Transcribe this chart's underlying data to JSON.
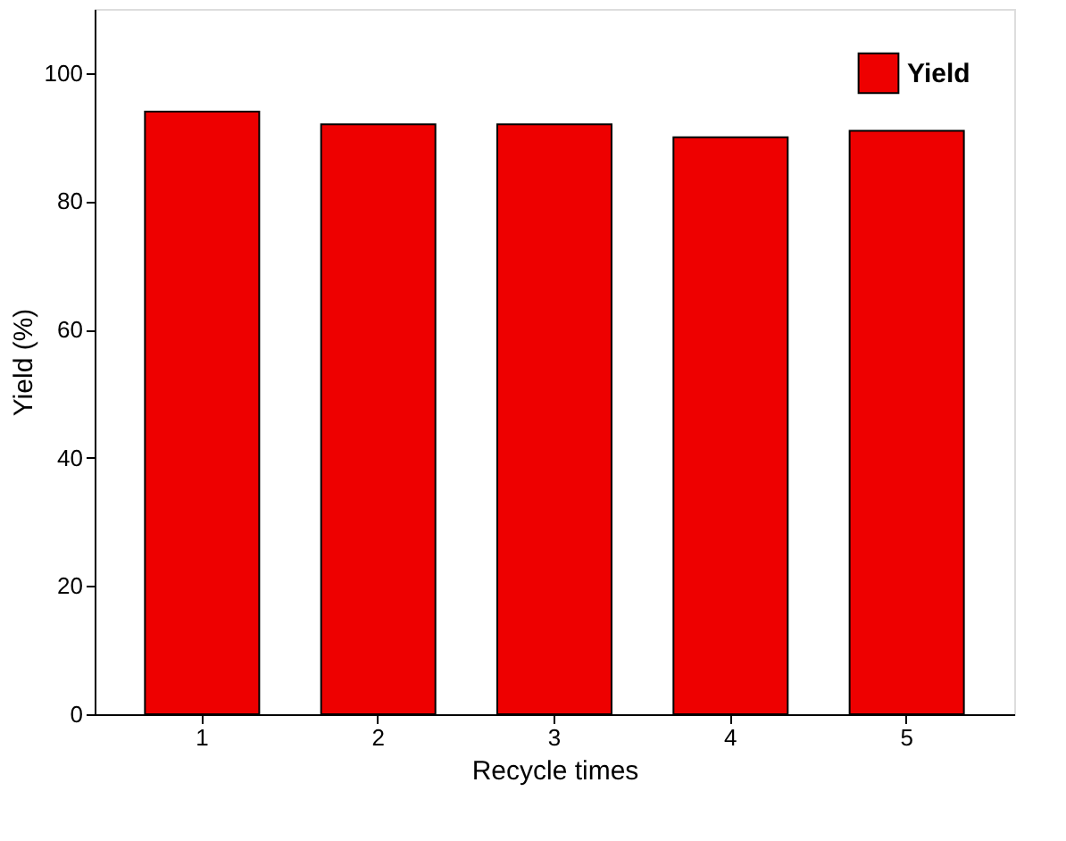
{
  "chart_data": {
    "type": "bar",
    "xlabel": "Recycle times",
    "ylabel": "Yield (%)",
    "categories": [
      "1",
      "2",
      "3",
      "4",
      "5"
    ],
    "series": [
      {
        "name": "Yield",
        "color": "#ee0000",
        "values": [
          94,
          92,
          92,
          90,
          91
        ]
      }
    ],
    "ylim": [
      0,
      110
    ],
    "yticks": [
      0,
      20,
      40,
      60,
      80,
      100
    ],
    "grid": false,
    "legend": "top right"
  }
}
